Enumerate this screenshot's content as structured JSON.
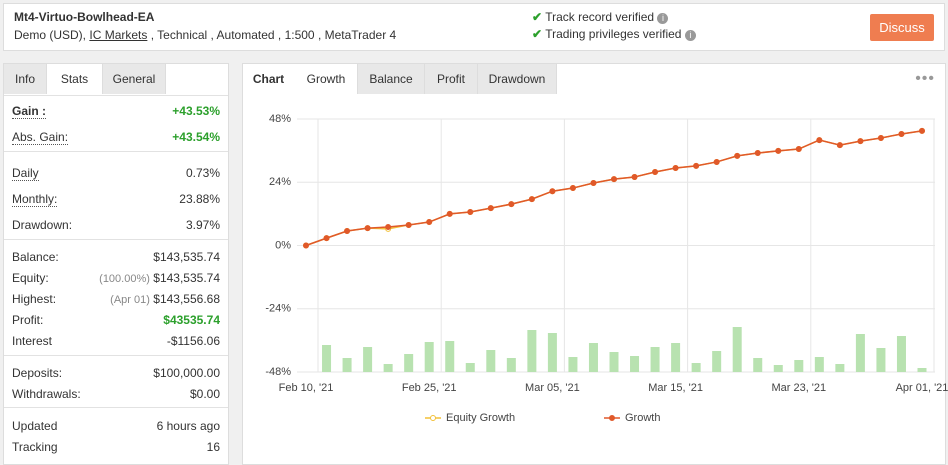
{
  "header": {
    "title": "Mt4-Virtuo-Bowlhead-EA",
    "account": "Demo (USD),",
    "broker": "IC Markets",
    "details": ", Technical , Automated , 1:500 , MetaTrader 4",
    "verified": [
      "Track record verified",
      "Trading privileges verified"
    ],
    "button": "Discuss"
  },
  "stats": {
    "tabs": [
      "Info",
      "Stats",
      "General"
    ],
    "active_tab": 1,
    "groups": [
      [
        {
          "label": "Gain :",
          "value": "+43.53%",
          "color": "#2ca02c",
          "underline": true,
          "bold": true
        },
        {
          "label": "Abs. Gain:",
          "value": "+43.54%",
          "color": "#2ca02c",
          "underline": true
        }
      ],
      [
        {
          "label": "Daily",
          "value": "0.73%",
          "underline": true
        },
        {
          "label": "Monthly:",
          "value": "23.88%",
          "underline": true
        },
        {
          "label": "Drawdown:",
          "value": "3.97%"
        }
      ],
      [
        {
          "label": "Balance:",
          "value": "$143,535.74"
        },
        {
          "label": "Equity:",
          "note": "(100.00%)",
          "value": "$143,535.74"
        },
        {
          "label": "Highest:",
          "note": "(Apr 01)",
          "value": "$143,556.68"
        },
        {
          "label": "Profit:",
          "value": "$43535.74",
          "color": "#2ca02c"
        },
        {
          "label": "Interest",
          "value": "-$1156.06"
        }
      ],
      [
        {
          "label": "Deposits:",
          "value": "$100,000.00"
        },
        {
          "label": "Withdrawals:",
          "value": "$0.00"
        }
      ],
      [
        {
          "label": "Updated",
          "value": "6 hours ago"
        },
        {
          "label": "Tracking",
          "value": "16"
        }
      ]
    ]
  },
  "chart_tabs": [
    "Chart",
    "Growth",
    "Balance",
    "Profit",
    "Drawdown"
  ],
  "active_chart_tab": 1,
  "chart_data": {
    "type": "line",
    "categories": [
      "Feb 10, '21",
      null,
      null,
      null,
      null,
      null,
      "Feb 25, '21",
      null,
      null,
      null,
      null,
      null,
      "Mar 05, '21",
      null,
      null,
      null,
      null,
      null,
      "Mar 15, '21",
      null,
      null,
      null,
      null,
      null,
      "Mar 23, '21",
      null,
      null,
      null,
      null,
      null,
      "Apr 01, '21"
    ],
    "series": [
      {
        "name": "Equity Growth",
        "color": "#f2c037",
        "values": [
          0,
          2.8,
          5.5,
          6.6,
          6.3,
          7.8,
          8.9,
          12,
          12.7,
          14.2,
          15.7,
          17.6,
          20.6,
          21.8,
          23.7,
          25.2,
          26,
          27.9,
          29.4,
          30.2,
          31.7,
          34,
          35.1,
          35.9,
          36.6,
          40,
          38.1,
          39.6,
          40.8,
          42.3,
          43.5
        ]
      },
      {
        "name": "Growth",
        "color": "#e0592a",
        "values": [
          0,
          2.8,
          5.5,
          6.6,
          7.0,
          7.8,
          8.9,
          12,
          12.7,
          14.2,
          15.7,
          17.6,
          20.6,
          21.8,
          23.7,
          25.2,
          26,
          27.9,
          29.4,
          30.2,
          31.7,
          34,
          35.1,
          35.9,
          36.6,
          40,
          38.1,
          39.6,
          40.8,
          42.3,
          43.5
        ]
      },
      {
        "color": "#b8e2b0",
        "axis": "y2",
        "type": "bar",
        "values": [
          null,
          10.8,
          5.6,
          10,
          3.2,
          7.2,
          12,
          12.4,
          3.6,
          8.8,
          5.6,
          16.8,
          15.6,
          6,
          11.6,
          8,
          6.4,
          10,
          11.6,
          3.6,
          8.4,
          18,
          5.6,
          2.8,
          4.8,
          6,
          3.2,
          15.2,
          9.6,
          14.4,
          1.6
        ]
      }
    ],
    "ylim": [
      -48,
      48
    ],
    "yticks": [
      {
        "value": 48,
        "label": "48%"
      },
      {
        "value": 24,
        "label": "24%"
      },
      {
        "value": 0,
        "label": "0%"
      },
      {
        "value": -24,
        "label": "-24%"
      },
      {
        "value": -48,
        "label": "-48%"
      }
    ],
    "y2lim": [
      0,
      100
    ],
    "grid": true,
    "legend": "bottom"
  }
}
